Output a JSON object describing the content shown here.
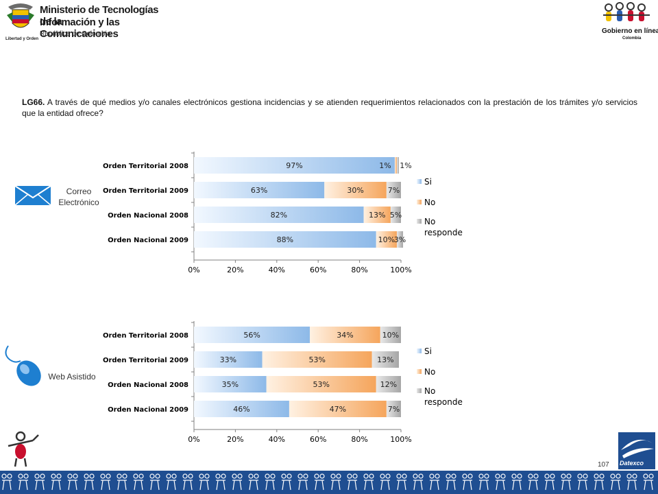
{
  "header": {
    "ministry_line1": "Ministerio de Tecnologías de la",
    "ministry_line2": "Información y las Comunicaciones",
    "ministry_line3": "República de Colombia",
    "motto": "Libertad y Orden",
    "gel_title": "Gobierno en línea",
    "gel_country": "Colombia"
  },
  "question": {
    "code": "LG66.",
    "text": "A través de qué medios y/o canales electrónicos gestiona incidencias y se atienden  requerimientos relacionados con la prestación de los trámites y/o servicios que la entidad ofrece?"
  },
  "sections": [
    {
      "label_line1": "Correo",
      "label_line2": "Electrónico",
      "icon": "envelope-icon"
    },
    {
      "label_line1": "Web Asistido",
      "label_line2": "",
      "icon": "mouse-icon"
    }
  ],
  "colors": {
    "si": "#8db9e8",
    "no": "#f5a55c",
    "no_responde": "#a6a6a6"
  },
  "chart_data": [
    {
      "type": "bar",
      "orientation": "horizontal",
      "stacked": true,
      "categories": [
        "Orden Territorial 2008",
        "Orden Territorial 2009",
        "Orden Nacional 2008",
        "Orden Nacional 2009"
      ],
      "series": [
        {
          "name": "Si",
          "values": [
            97,
            63,
            82,
            88
          ],
          "labels": [
            "97%",
            "63%",
            "82%",
            "88%"
          ]
        },
        {
          "name": "No",
          "values": [
            1,
            30,
            13,
            10
          ],
          "labels": [
            "1%",
            "30%",
            "13%",
            "10%"
          ]
        },
        {
          "name": "No responde",
          "values": [
            1,
            7,
            5,
            3
          ],
          "labels": [
            "1%",
            "7%",
            "5%",
            "3%"
          ]
        }
      ],
      "xlim": [
        0,
        100
      ],
      "xticks": [
        "0%",
        "20%",
        "40%",
        "60%",
        "80%",
        "100%"
      ],
      "legend": [
        "Si",
        "No",
        "No responde"
      ],
      "legend_position": "right",
      "grid": false
    },
    {
      "type": "bar",
      "orientation": "horizontal",
      "stacked": true,
      "categories": [
        "Orden Territorial 2008",
        "Orden Territorial 2009",
        "Orden Nacional 2008",
        "Orden Nacional 2009"
      ],
      "series": [
        {
          "name": "Si",
          "values": [
            56,
            33,
            35,
            46
          ],
          "labels": [
            "56%",
            "33%",
            "35%",
            "46%"
          ]
        },
        {
          "name": "No",
          "values": [
            34,
            53,
            53,
            47
          ],
          "labels": [
            "34%",
            "53%",
            "53%",
            "47%"
          ]
        },
        {
          "name": "No responde",
          "values": [
            10,
            13,
            12,
            7
          ],
          "labels": [
            "10%",
            "13%",
            "12%",
            "7%"
          ]
        }
      ],
      "xlim": [
        0,
        100
      ],
      "xticks": [
        "0%",
        "20%",
        "40%",
        "60%",
        "80%",
        "100%"
      ],
      "legend": [
        "Si",
        "No",
        "No responde"
      ],
      "legend_position": "right",
      "grid": false
    }
  ],
  "footer": {
    "page_number": "107",
    "brand": "Datexco"
  }
}
